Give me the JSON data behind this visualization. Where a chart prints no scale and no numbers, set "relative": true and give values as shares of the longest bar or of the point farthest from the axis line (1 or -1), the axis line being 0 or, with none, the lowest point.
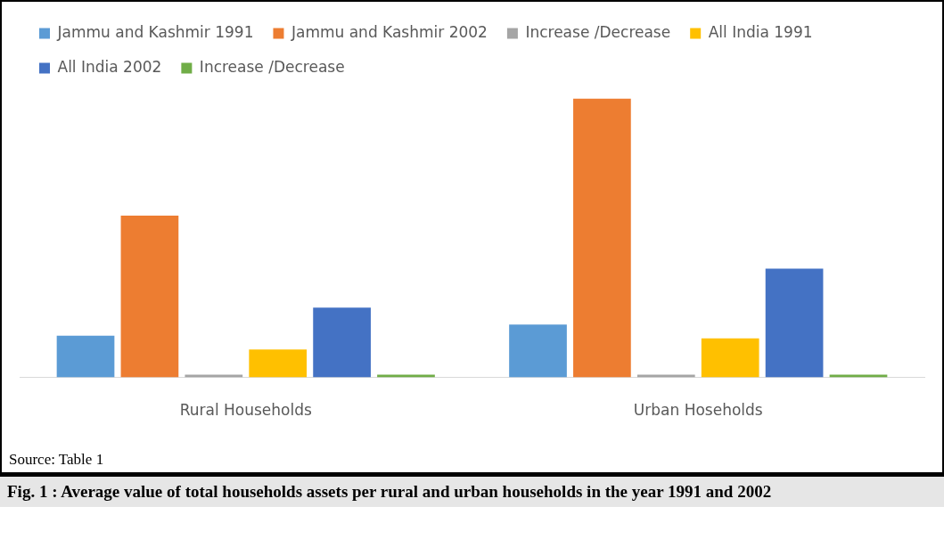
{
  "chart_data": {
    "type": "bar",
    "title": "Fig. 1 :  Average value of total households assets per rural and urban households in the year 1991 and 2002",
    "relative": true,
    "categories": [
      "Rural Households",
      "Urban Hoseholds"
    ],
    "series": [
      {
        "name": "Jammu and Kashmir 1991",
        "color": "#5b9bd5",
        "values": [
          0.15,
          0.19
        ]
      },
      {
        "name": "Jammu and Kashmir 2002",
        "color": "#ed7d31",
        "values": [
          0.58,
          1
        ]
      },
      {
        "name": "Increase /Decrease",
        "color": "#a5a5a5",
        "values": [
          0,
          0
        ]
      },
      {
        "name": "All India 1991",
        "color": "#ffc000",
        "values": [
          0.1,
          0.14
        ]
      },
      {
        "name": "All India 2002",
        "color": "#4472c4",
        "values": [
          0.25,
          0.39
        ]
      },
      {
        "name": "Increase /Decrease",
        "color": "#70ad47",
        "values": [
          0,
          0
        ]
      }
    ],
    "legend": "top",
    "grid": false,
    "annotations": [
      "Source: Table 1"
    ]
  }
}
